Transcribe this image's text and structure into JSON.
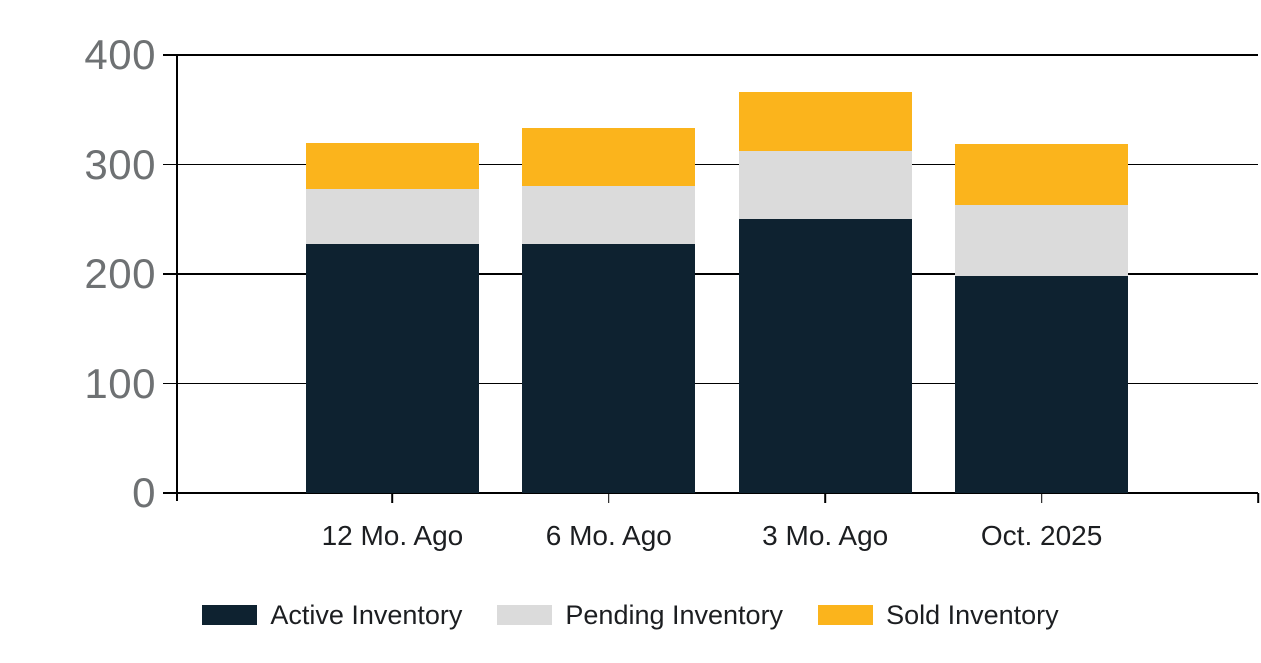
{
  "chart_data": {
    "type": "bar",
    "stacked": true,
    "title": "",
    "xlabel": "",
    "ylabel": "",
    "categories": [
      "12 Mo. Ago",
      "6 Mo. Ago",
      "3 Mo. Ago",
      "Oct. 2025"
    ],
    "series": [
      {
        "name": "Active Inventory",
        "color": "#0e2230",
        "values": [
          227,
          227,
          250,
          198
        ]
      },
      {
        "name": "Pending Inventory",
        "color": "#dbdbdb",
        "values": [
          51,
          53,
          62,
          65
        ]
      },
      {
        "name": "Sold Inventory",
        "color": "#fbb41c",
        "values": [
          42,
          53,
          54,
          56
        ]
      }
    ],
    "stack_totals": [
      320,
      333,
      366,
      319
    ],
    "ylim": [
      0,
      400
    ],
    "yticks": [
      0,
      100,
      200,
      300,
      400
    ],
    "grid": true,
    "legend_position": "bottom"
  },
  "colors": {
    "background": "#ffffff",
    "grid_line": "#000000",
    "axis_line": "#000000",
    "y_tick_label": "#6e7173",
    "x_tick_label": "#1c1e21",
    "legend_text": "#1c1e21"
  }
}
